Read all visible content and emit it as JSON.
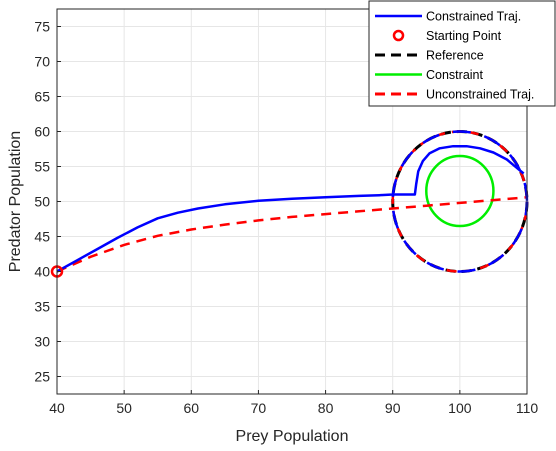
{
  "chart_data": {
    "type": "line",
    "title": "",
    "xlabel": "Prey Population",
    "ylabel": "Predator Population",
    "xlim": [
      40,
      110
    ],
    "ylim": [
      22.5,
      77.5
    ],
    "xticks": [
      40,
      50,
      60,
      70,
      80,
      90,
      100,
      110
    ],
    "yticks": [
      25,
      30,
      35,
      40,
      45,
      50,
      55,
      60,
      65,
      70,
      75
    ],
    "grid": true,
    "legend_position": "top-right",
    "series": [
      {
        "name": "Constrained Traj.",
        "color": "#0000ff",
        "style": "solid",
        "x": [
          40,
          43,
          46,
          49,
          52,
          55,
          58,
          61,
          65,
          70,
          75,
          80,
          85,
          88,
          90,
          92.5,
          93.3,
          93.5,
          93.8,
          94.5,
          95.5,
          97,
          99,
          101,
          103,
          105,
          107,
          108.5,
          109.5
        ],
        "y": [
          40,
          41.6,
          43.2,
          44.8,
          46.3,
          47.6,
          48.4,
          49.0,
          49.6,
          50.1,
          50.4,
          50.6,
          50.8,
          50.9,
          51.0,
          51.0,
          51.0,
          52.5,
          54.3,
          55.8,
          56.9,
          57.6,
          57.9,
          57.9,
          57.6,
          57.0,
          56.0,
          54.8,
          54.0
        ]
      },
      {
        "name": "Starting Point",
        "color": "#ff0000",
        "style": "marker",
        "x": [
          40
        ],
        "y": [
          40
        ]
      },
      {
        "name": "Reference",
        "color": "#000000",
        "style": "dashed",
        "shape": "circle",
        "center": [
          100,
          50
        ],
        "radius": 10
      },
      {
        "name": "Constraint",
        "color": "#00ee00",
        "style": "solid",
        "shape": "ellipse",
        "center": [
          100,
          51.5
        ],
        "radius_x": 5,
        "radius_y": 5
      },
      {
        "name": "Unconstrained Traj.",
        "color": "#ff0000",
        "style": "dashed",
        "x": [
          40,
          45,
          50,
          55,
          60,
          65,
          70,
          75,
          80,
          85,
          90,
          95,
          100,
          105,
          110
        ],
        "y": [
          40,
          42.1,
          43.8,
          45.1,
          46.0,
          46.7,
          47.3,
          47.8,
          48.2,
          48.6,
          49.0,
          49.4,
          49.8,
          50.2,
          50.6
        ]
      }
    ],
    "legend": [
      "Constrained Traj.",
      "Starting Point",
      "Reference",
      "Constraint",
      "Unconstrained Traj."
    ]
  }
}
